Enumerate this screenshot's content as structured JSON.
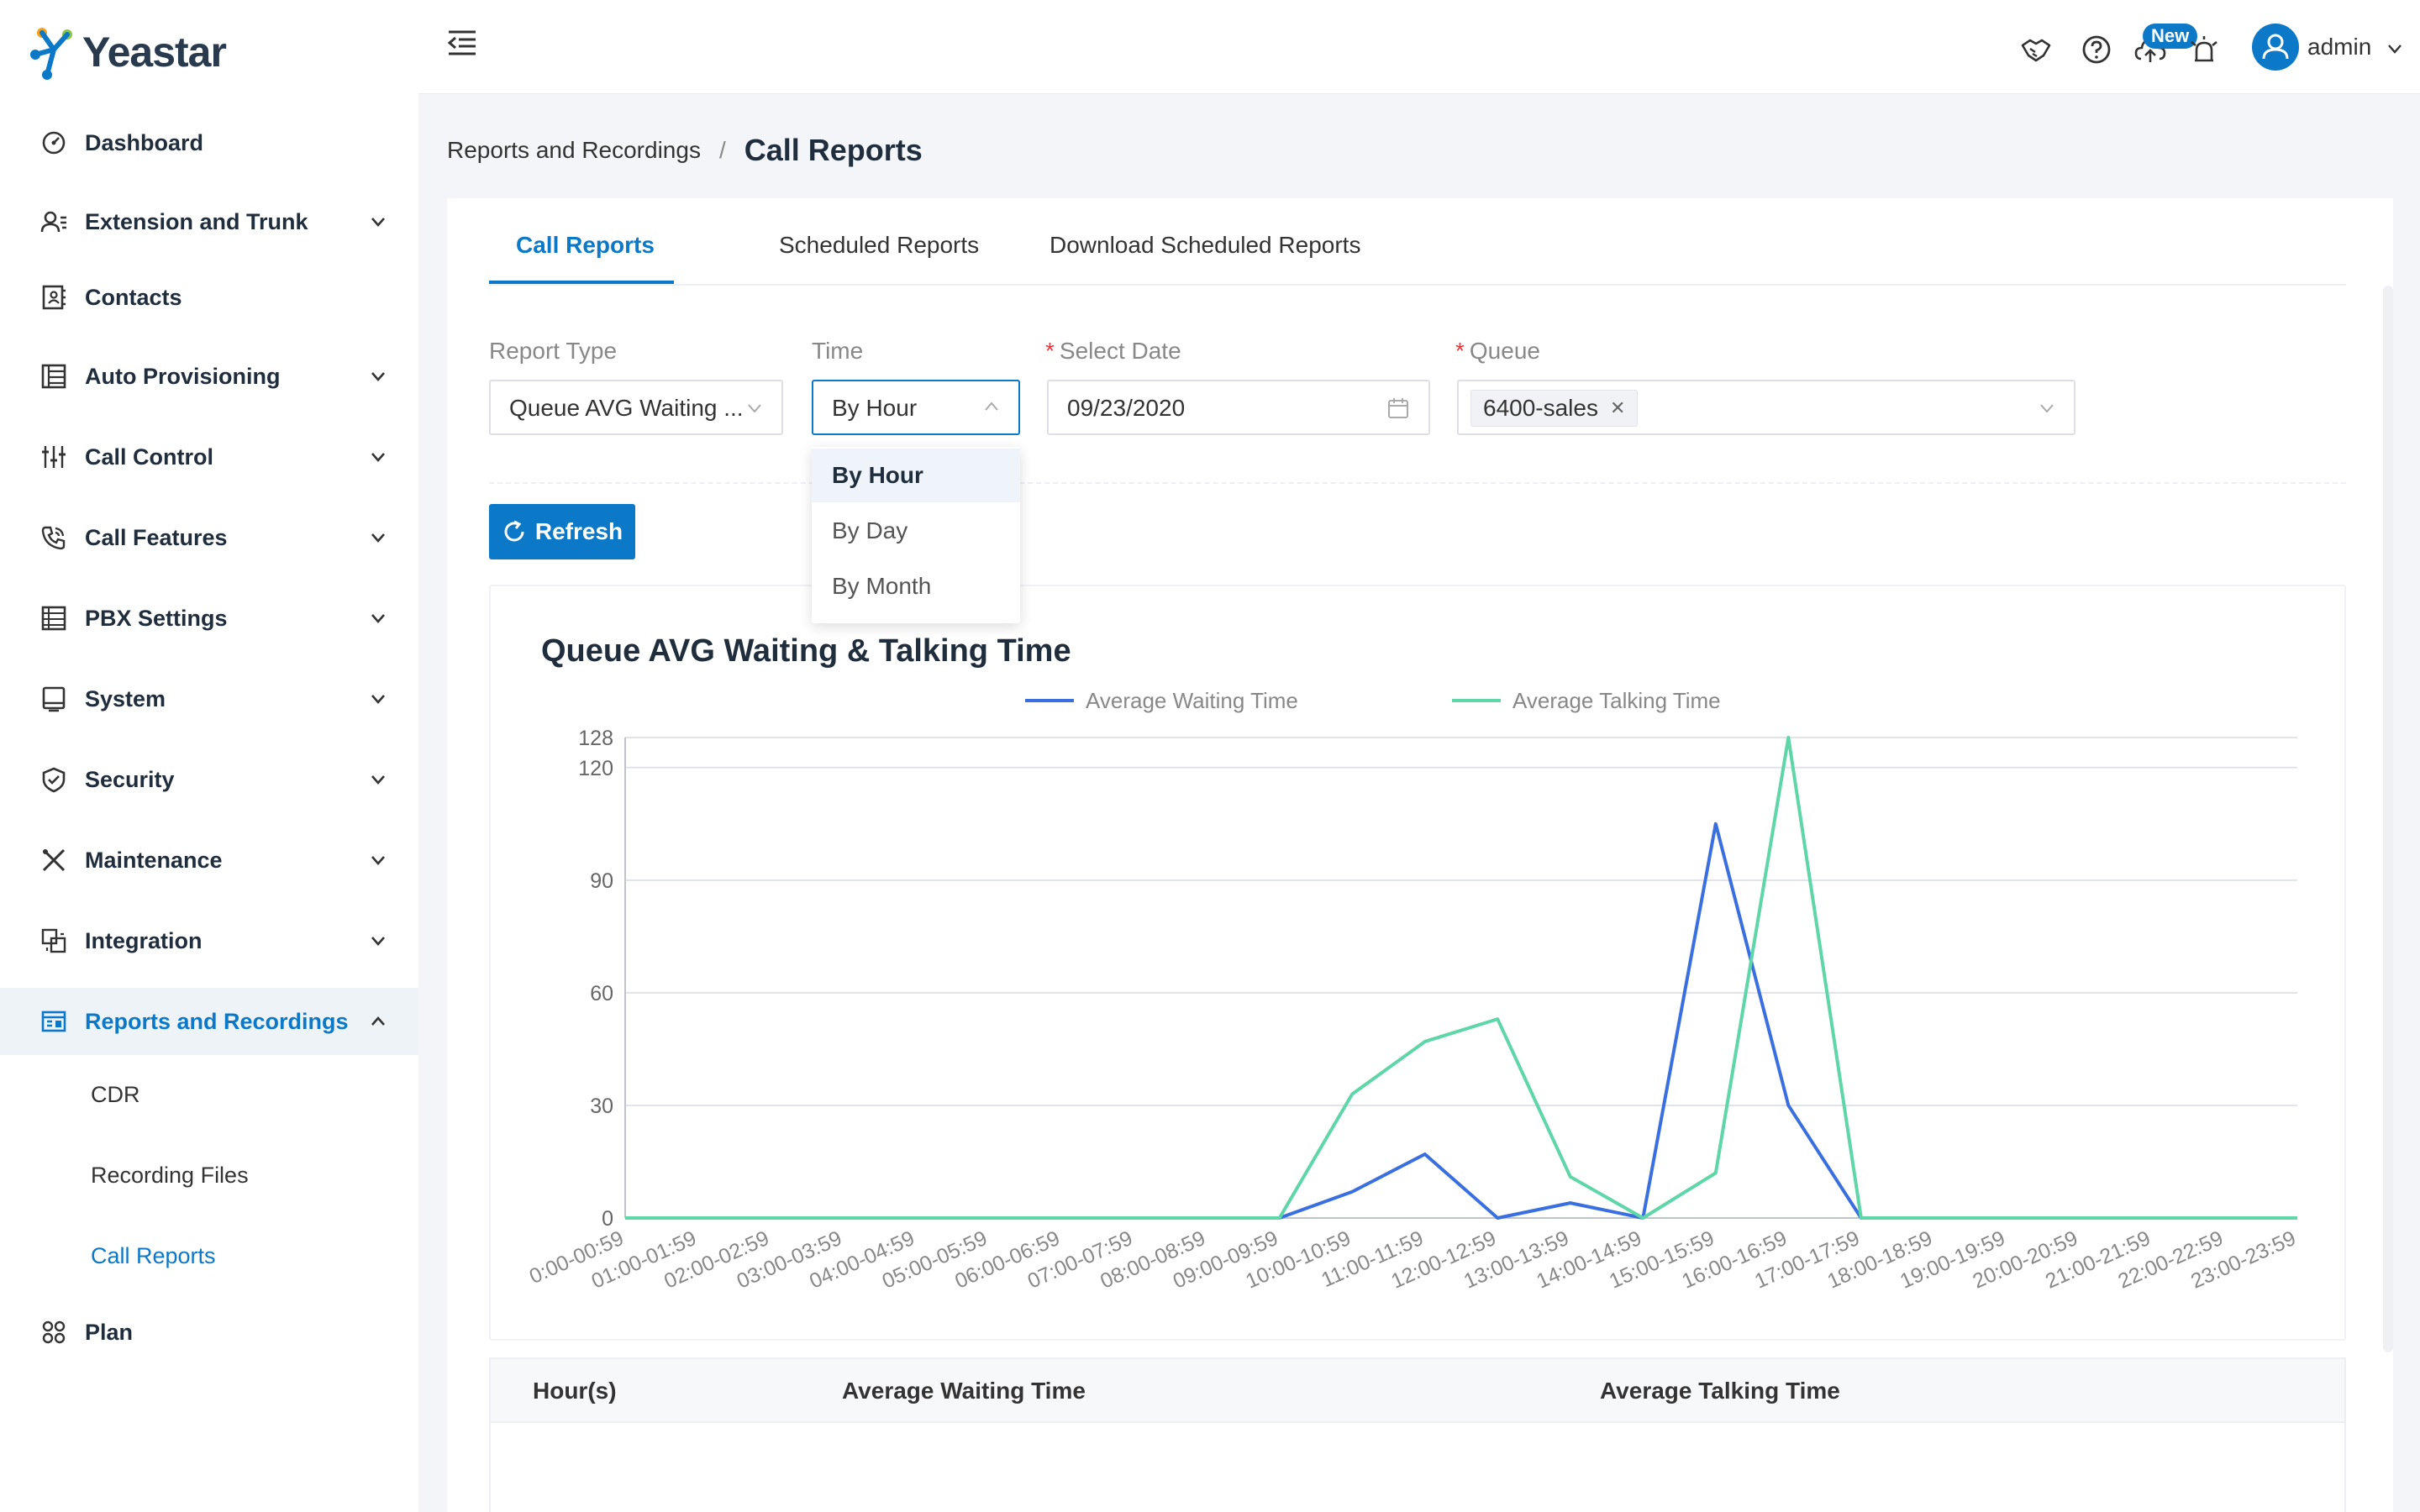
{
  "app": {
    "brand": "Yeastar",
    "accent": "#0b78c8"
  },
  "sidebar": {
    "items": [
      {
        "label": "Dashboard",
        "icon": "dashboard-icon",
        "expandable": false
      },
      {
        "label": "Extension and Trunk",
        "icon": "users-icon",
        "expandable": true
      },
      {
        "label": "Contacts",
        "icon": "contacts-icon",
        "expandable": false
      },
      {
        "label": "Auto Provisioning",
        "icon": "provisioning-icon",
        "expandable": true
      },
      {
        "label": "Call Control",
        "icon": "sliders-icon",
        "expandable": true
      },
      {
        "label": "Call Features",
        "icon": "phone-icon",
        "expandable": true
      },
      {
        "label": "PBX Settings",
        "icon": "settings-list-icon",
        "expandable": true
      },
      {
        "label": "System",
        "icon": "monitor-icon",
        "expandable": true
      },
      {
        "label": "Security",
        "icon": "shield-icon",
        "expandable": true
      },
      {
        "label": "Maintenance",
        "icon": "tools-icon",
        "expandable": true
      },
      {
        "label": "Integration",
        "icon": "integration-icon",
        "expandable": true
      },
      {
        "label": "Reports and Recordings",
        "icon": "reports-icon",
        "expandable": true,
        "active": true
      },
      {
        "label": "Plan",
        "icon": "plan-icon",
        "expandable": false
      }
    ],
    "subitems": [
      {
        "label": "CDR"
      },
      {
        "label": "Recording Files"
      },
      {
        "label": "Call Reports",
        "active": true
      }
    ]
  },
  "topbar": {
    "new_badge": "New",
    "user": "admin"
  },
  "breadcrumb": {
    "parent": "Reports and Recordings",
    "separator": "/",
    "current": "Call Reports"
  },
  "tabs": [
    {
      "label": "Call Reports",
      "active": true
    },
    {
      "label": "Scheduled Reports"
    },
    {
      "label": "Download Scheduled Reports"
    }
  ],
  "filters": {
    "report_type": {
      "label": "Report Type",
      "value": "Queue AVG Waiting ..."
    },
    "time": {
      "label": "Time",
      "value": "By Hour"
    },
    "select_date": {
      "label": "Select Date",
      "value": "09/23/2020"
    },
    "queue": {
      "label": "Queue",
      "tag": "6400-sales"
    }
  },
  "refresh_label": "Refresh",
  "time_options": [
    "By Hour",
    "By Day",
    "By Month"
  ],
  "table": {
    "headers": [
      "Hour(s)",
      "Average Waiting Time",
      "Average Talking Time"
    ]
  },
  "chart_data": {
    "type": "line",
    "title": "Queue AVG Waiting & Talking Time",
    "ylim": [
      0,
      128
    ],
    "yticks": [
      0,
      30,
      60,
      90,
      120,
      128
    ],
    "ytick_labels": [
      "0",
      "30",
      "60",
      "90",
      "120",
      "128"
    ],
    "categories": [
      "0:00-00:59",
      "01:00-01:59",
      "02:00-02:59",
      "03:00-03:59",
      "04:00-04:59",
      "05:00-05:59",
      "06:00-06:59",
      "07:00-07:59",
      "08:00-08:59",
      "09:00-09:59",
      "10:00-10:59",
      "11:00-11:59",
      "12:00-12:59",
      "13:00-13:59",
      "14:00-14:59",
      "15:00-15:59",
      "16:00-16:59",
      "17:00-17:59",
      "18:00-18:59",
      "19:00-19:59",
      "20:00-20:59",
      "21:00-21:59",
      "22:00-22:59",
      "23:00-23:59"
    ],
    "legend_position": "top",
    "series": [
      {
        "name": "Average Waiting Time",
        "color": "#3a6fe0",
        "values": [
          0,
          0,
          0,
          0,
          0,
          0,
          0,
          0,
          0,
          0,
          7,
          17,
          0,
          4,
          0,
          105,
          30,
          0,
          0,
          0,
          0,
          0,
          0,
          0
        ]
      },
      {
        "name": "Average Talking Time",
        "color": "#5ed6a8",
        "values": [
          0,
          0,
          0,
          0,
          0,
          0,
          0,
          0,
          0,
          0,
          33,
          47,
          53,
          11,
          0,
          12,
          128,
          0,
          0,
          0,
          0,
          0,
          0,
          0
        ]
      }
    ]
  }
}
